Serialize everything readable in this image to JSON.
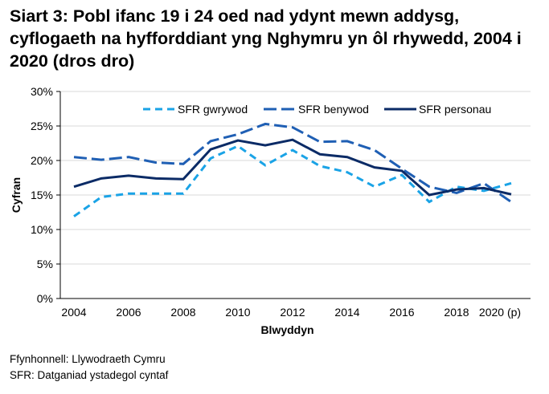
{
  "title": "Siart 3: Pobl ifanc 19 i 24 oed nad ydynt mewn addysg, cyflogaeth na hyfforddiant yng Nghymru yn ôl rhywedd, 2004 i 2020 (dros dro)",
  "footer": {
    "source": "Ffynhonnell: Llywodraeth Cymru",
    "note": "SFR: Datganiad ystadegol cyntaf"
  },
  "chart_data": {
    "type": "line",
    "xlabel": "Blwyddyn",
    "ylabel": "Cyfran",
    "x": [
      2004,
      2005,
      2006,
      2007,
      2008,
      2009,
      2010,
      2011,
      2012,
      2013,
      2014,
      2015,
      2016,
      2017,
      2018,
      2019,
      2020
    ],
    "x_tick_labels": [
      "2004",
      "2006",
      "2008",
      "2010",
      "2012",
      "2014",
      "2016",
      "2018",
      "2020 (p)"
    ],
    "y_tick_labels": [
      "0%",
      "5%",
      "10%",
      "15%",
      "20%",
      "25%",
      "30%"
    ],
    "ylim": [
      0,
      30
    ],
    "grid": true,
    "legend": "top",
    "series": [
      {
        "name": "SFR gwrywod",
        "color": "#1aa3e6",
        "dash": "dashed",
        "values": [
          11.9,
          14.7,
          15.2,
          15.2,
          15.2,
          20.3,
          22.1,
          19.3,
          21.5,
          19.2,
          18.3,
          16.2,
          17.9,
          14.0,
          16.2,
          15.6,
          16.7
        ]
      },
      {
        "name": "SFR benywod",
        "color": "#1f5fb4",
        "dash": "long-dash",
        "values": [
          20.5,
          20.1,
          20.5,
          19.7,
          19.5,
          22.8,
          23.8,
          25.3,
          24.8,
          22.7,
          22.8,
          21.5,
          18.8,
          16.2,
          15.3,
          16.7,
          14.0
        ]
      },
      {
        "name": "SFR personau",
        "color": "#0b2b66",
        "dash": "solid",
        "values": [
          16.2,
          17.4,
          17.8,
          17.4,
          17.3,
          21.6,
          22.9,
          22.2,
          23.0,
          20.9,
          20.5,
          19.0,
          18.5,
          15.0,
          15.8,
          16.0,
          15.1
        ]
      }
    ]
  }
}
